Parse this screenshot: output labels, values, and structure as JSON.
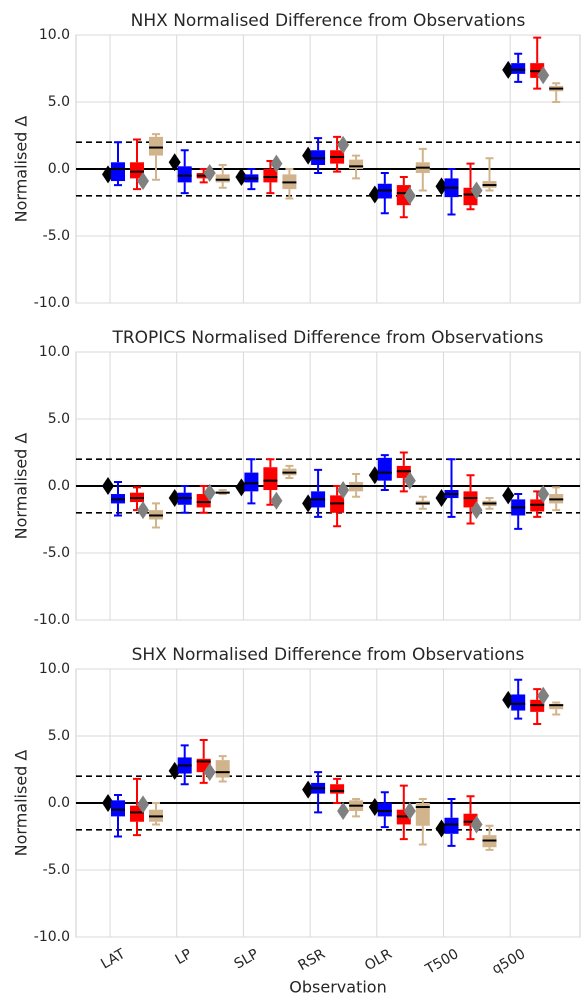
{
  "chart_data": [
    {
      "type": "box",
      "title": "NHX Normalised Difference from Observations",
      "ylabel": "Normalised Δ",
      "ylim": [
        -10,
        10
      ],
      "yticks": [
        {
          "value": -10,
          "label": "-10.0"
        },
        {
          "value": -5,
          "label": "-5.0"
        },
        {
          "value": 0,
          "label": "0.0"
        },
        {
          "value": 5,
          "label": "5.0"
        },
        {
          "value": 10,
          "label": "10.0"
        }
      ],
      "grid": true,
      "ref_lines": [
        {
          "value": 0,
          "style": "solid"
        },
        {
          "value": 2,
          "style": "dashed"
        },
        {
          "value": -2,
          "style": "dashed"
        }
      ],
      "series": [
        {
          "color": "#000000",
          "marker": "diamond",
          "values": [
            -0.4,
            0.5,
            -0.6,
            1.0,
            -1.9,
            -1.3,
            7.4
          ]
        },
        {
          "color": "#0000ff",
          "marker": "box",
          "values": [
            [
              -1.2,
              -0.9,
              0,
              0.5,
              2.0
            ],
            [
              -1.8,
              -1.0,
              -0.5,
              0.2,
              1.4
            ],
            [
              -1.5,
              -1.0,
              -0.7,
              -0.4,
              0
            ],
            [
              -0.3,
              0.3,
              0.8,
              1.4,
              2.3
            ],
            [
              -3.3,
              -2.2,
              -1.6,
              -1.1,
              -0.3
            ],
            [
              -3.4,
              -2.1,
              -1.4,
              -0.7,
              0
            ],
            [
              6.5,
              7.1,
              7.4,
              7.9,
              8.6
            ]
          ]
        },
        {
          "color": "#ff0000",
          "marker": "box",
          "values": [
            [
              -1.5,
              -0.7,
              -0.2,
              0.5,
              2.2
            ],
            [
              -1.0,
              -0.7,
              -0.5,
              -0.3,
              0
            ],
            [
              -1.8,
              -1.0,
              -0.6,
              0,
              0.6
            ],
            [
              -0.2,
              0.4,
              0.9,
              1.4,
              2.4
            ],
            [
              -3.6,
              -2.7,
              -1.8,
              -1.2,
              -0.6
            ],
            [
              -3.0,
              -2.7,
              -1.9,
              -1.4,
              0.4
            ],
            [
              6.0,
              6.8,
              7.3,
              7.9,
              9.8
            ]
          ]
        },
        {
          "color": "#808080",
          "marker": "diamond",
          "values": [
            -0.9,
            -0.3,
            0.4,
            1.8,
            -2.0,
            -1.6,
            7.0
          ]
        },
        {
          "color": "#d2b48c",
          "marker": "box",
          "values": [
            [
              -0.8,
              1.0,
              1.6,
              2.4,
              2.6
            ],
            [
              -1.4,
              -1.0,
              -0.8,
              -0.4,
              0.3
            ],
            [
              -2.2,
              -1.5,
              -1.0,
              -0.4,
              0
            ],
            [
              -0.7,
              0,
              0.2,
              0.7,
              1.0
            ],
            [
              -1.6,
              -0.3,
              0.1,
              0.5,
              1.5
            ],
            [
              -1.6,
              -1.4,
              -1.2,
              -0.9,
              0.8
            ],
            [
              5.0,
              5.8,
              6.0,
              6.2,
              6.4
            ]
          ]
        }
      ]
    },
    {
      "type": "box",
      "title": "TROPICS Normalised Difference from Observations",
      "ylabel": "Normalised Δ",
      "ylim": [
        -10,
        10
      ],
      "yticks": [
        {
          "value": -10,
          "label": "-10.0"
        },
        {
          "value": -5,
          "label": "-5.0"
        },
        {
          "value": 0,
          "label": "0.0"
        },
        {
          "value": 5,
          "label": "5.0"
        },
        {
          "value": 10,
          "label": "10.0"
        }
      ],
      "grid": true,
      "ref_lines": [
        {
          "value": 0,
          "style": "solid"
        },
        {
          "value": 2,
          "style": "dashed"
        },
        {
          "value": -2,
          "style": "dashed"
        }
      ],
      "series": [
        {
          "color": "#000000",
          "marker": "diamond",
          "values": [
            0,
            -0.9,
            -0.1,
            -1.3,
            0.8,
            -0.9,
            -0.7
          ]
        },
        {
          "color": "#0000ff",
          "marker": "box",
          "values": [
            [
              -2.2,
              -1.3,
              -1.0,
              -0.6,
              0.3
            ],
            [
              -2.0,
              -1.4,
              -0.9,
              -0.5,
              0
            ],
            [
              -1.3,
              -0.4,
              0.2,
              1.0,
              2.0
            ],
            [
              -2.3,
              -1.6,
              -1.0,
              -0.4,
              1.2
            ],
            [
              -0.3,
              0.4,
              1.0,
              2.1,
              2.3
            ],
            [
              -2.3,
              -0.9,
              -0.6,
              -0.3,
              2.0
            ],
            [
              -3.2,
              -2.2,
              -1.6,
              -1.0,
              -0.6
            ]
          ]
        },
        {
          "color": "#ff0000",
          "marker": "box",
          "values": [
            [
              -1.8,
              -1.2,
              -0.9,
              -0.5,
              -0.1
            ],
            [
              -2.0,
              -1.6,
              -1.2,
              -0.6,
              0
            ],
            [
              -1.4,
              -0.3,
              0.4,
              1.4,
              2.0
            ],
            [
              -3.0,
              -2.0,
              -1.3,
              -0.7,
              0
            ],
            [
              -0.4,
              0.6,
              1.1,
              1.5,
              2.5
            ],
            [
              -2.8,
              -1.6,
              -0.9,
              -0.4,
              0.8
            ],
            [
              -2.3,
              -1.9,
              -1.4,
              -1.0,
              -0.4
            ]
          ]
        },
        {
          "color": "#808080",
          "marker": "diamond",
          "values": [
            -1.8,
            -0.5,
            -1.1,
            -0.3,
            0.4,
            -1.8,
            -0.6
          ]
        },
        {
          "color": "#d2b48c",
          "marker": "box",
          "values": [
            [
              -3.1,
              -2.5,
              -2.2,
              -1.8,
              -1.3
            ],
            [
              -0.6,
              -0.5,
              -0.5,
              -0.4,
              -0.3
            ],
            [
              0.6,
              0.8,
              1.0,
              1.3,
              1.5
            ],
            [
              -0.8,
              -0.4,
              0,
              0.3,
              0.9
            ],
            [
              -1.7,
              -1.4,
              -1.3,
              -1.1,
              -0.8
            ],
            [
              -1.7,
              -1.5,
              -1.3,
              -1.1,
              -0.9
            ],
            [
              -1.8,
              -1.3,
              -1.0,
              -0.6,
              -0.1
            ]
          ]
        }
      ]
    },
    {
      "type": "box",
      "title": "SHX Normalised Difference from Observations",
      "ylabel": "Normalised Δ",
      "xlabel": "Observation",
      "categories": [
        "LAT",
        "LP",
        "SLP",
        "RSR",
        "OLR",
        "T500",
        "q500"
      ],
      "ylim": [
        -10,
        10
      ],
      "yticks": [
        {
          "value": -10,
          "label": "-10.0"
        },
        {
          "value": -5,
          "label": "-5.0"
        },
        {
          "value": 0,
          "label": "0.0"
        },
        {
          "value": 5,
          "label": "5.0"
        },
        {
          "value": 10,
          "label": "10.0"
        }
      ],
      "grid": true,
      "ref_lines": [
        {
          "value": 0,
          "style": "solid"
        },
        {
          "value": 2,
          "style": "dashed"
        },
        {
          "value": -2,
          "style": "dashed"
        }
      ],
      "series": [
        {
          "color": "#000000",
          "marker": "diamond",
          "values": [
            0,
            2.4,
            null,
            1.0,
            -0.3,
            -1.9,
            7.7
          ]
        },
        {
          "color": "#0000ff",
          "marker": "box",
          "values": [
            [
              -2.5,
              -1.0,
              -0.5,
              0.2,
              0.6
            ],
            [
              1.4,
              2.2,
              2.8,
              3.4,
              4.3
            ],
            null,
            [
              -0.7,
              0.7,
              1.1,
              1.5,
              2.3
            ],
            [
              -1.8,
              -1.0,
              -0.6,
              0,
              0.8
            ],
            [
              -3.2,
              -2.3,
              -1.6,
              -1.1,
              0.3
            ],
            [
              6.3,
              6.9,
              7.4,
              8.1,
              9.2
            ]
          ]
        },
        {
          "color": "#ff0000",
          "marker": "box",
          "values": [
            [
              -2.4,
              -1.4,
              -0.7,
              -0.2,
              1.8
            ],
            [
              1.5,
              2.3,
              3.1,
              3.3,
              4.7
            ],
            null,
            [
              0,
              0.7,
              0.9,
              1.4,
              1.8
            ],
            [
              -2.7,
              -1.6,
              -1.0,
              -0.5,
              1.3
            ],
            [
              -2.7,
              -1.7,
              -1.4,
              -0.8,
              0.5
            ],
            [
              5.9,
              6.8,
              7.3,
              7.7,
              8.5
            ]
          ]
        },
        {
          "color": "#808080",
          "marker": "diamond",
          "values": [
            -0.1,
            2.3,
            null,
            -0.6,
            -0.6,
            -1.6,
            8.0
          ]
        },
        {
          "color": "#d2b48c",
          "marker": "box",
          "values": [
            [
              -1.6,
              -1.4,
              -1.0,
              -0.5,
              0
            ],
            [
              1.6,
              1.9,
              2.3,
              3.2,
              3.5
            ],
            null,
            [
              -1.0,
              -0.6,
              -0.2,
              0.2,
              0.3
            ],
            [
              -3.1,
              -1.7,
              -0.3,
              0,
              0.3
            ],
            [
              -3.5,
              -3.3,
              -2.8,
              -2.4,
              -1.7
            ],
            [
              6.6,
              7.0,
              7.3,
              7.4,
              7.5
            ]
          ]
        }
      ]
    }
  ]
}
